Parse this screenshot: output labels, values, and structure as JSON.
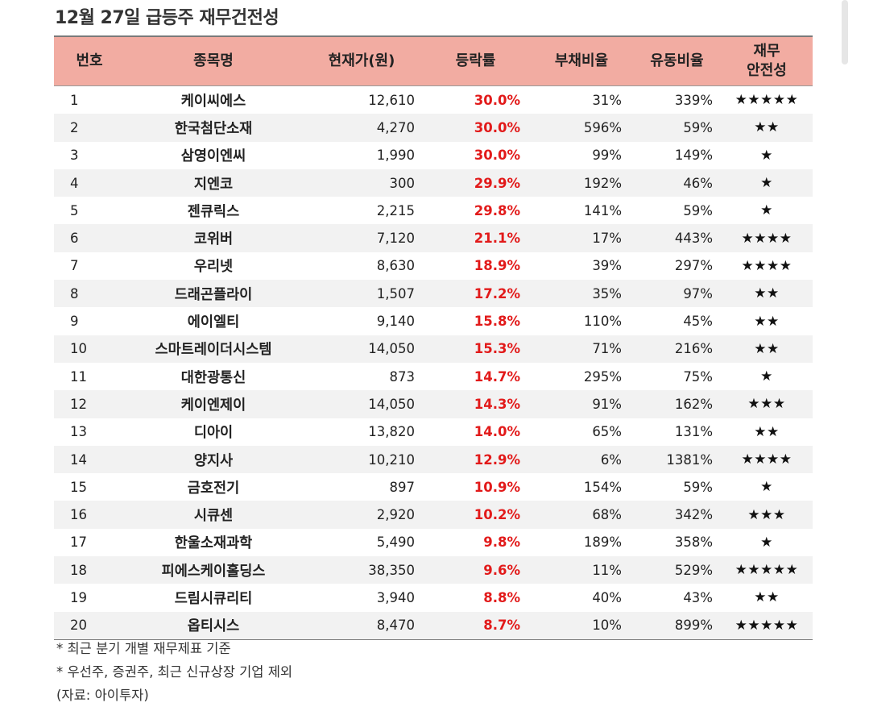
{
  "title": "12월 27일 급등주 재무건전성",
  "headers": {
    "no": "번호",
    "name": "종목명",
    "price": "현재가(원)",
    "change": "등락률",
    "debt": "부채비율",
    "liquidity": "유동비율",
    "safety_line1": "재무",
    "safety_line2": "안전성"
  },
  "rows": [
    {
      "no": "1",
      "name": "케이씨에스",
      "price": "12,610",
      "change": "30.0%",
      "debt": "31%",
      "liquidity": "339%",
      "stars": "★★★★★"
    },
    {
      "no": "2",
      "name": "한국첨단소재",
      "price": "4,270",
      "change": "30.0%",
      "debt": "596%",
      "liquidity": "59%",
      "stars": "★★"
    },
    {
      "no": "3",
      "name": "삼영이엔씨",
      "price": "1,990",
      "change": "30.0%",
      "debt": "99%",
      "liquidity": "149%",
      "stars": "★"
    },
    {
      "no": "4",
      "name": "지엔코",
      "price": "300",
      "change": "29.9%",
      "debt": "192%",
      "liquidity": "46%",
      "stars": "★"
    },
    {
      "no": "5",
      "name": "젠큐릭스",
      "price": "2,215",
      "change": "29.8%",
      "debt": "141%",
      "liquidity": "59%",
      "stars": "★"
    },
    {
      "no": "6",
      "name": "코위버",
      "price": "7,120",
      "change": "21.1%",
      "debt": "17%",
      "liquidity": "443%",
      "stars": "★★★★"
    },
    {
      "no": "7",
      "name": "우리넷",
      "price": "8,630",
      "change": "18.9%",
      "debt": "39%",
      "liquidity": "297%",
      "stars": "★★★★"
    },
    {
      "no": "8",
      "name": "드래곤플라이",
      "price": "1,507",
      "change": "17.2%",
      "debt": "35%",
      "liquidity": "97%",
      "stars": "★★"
    },
    {
      "no": "9",
      "name": "에이엘티",
      "price": "9,140",
      "change": "15.8%",
      "debt": "110%",
      "liquidity": "45%",
      "stars": "★★"
    },
    {
      "no": "10",
      "name": "스마트레이더시스템",
      "price": "14,050",
      "change": "15.3%",
      "debt": "71%",
      "liquidity": "216%",
      "stars": "★★"
    },
    {
      "no": "11",
      "name": "대한광통신",
      "price": "873",
      "change": "14.7%",
      "debt": "295%",
      "liquidity": "75%",
      "stars": "★"
    },
    {
      "no": "12",
      "name": "케이엔제이",
      "price": "14,050",
      "change": "14.3%",
      "debt": "91%",
      "liquidity": "162%",
      "stars": "★★★"
    },
    {
      "no": "13",
      "name": "디아이",
      "price": "13,820",
      "change": "14.0%",
      "debt": "65%",
      "liquidity": "131%",
      "stars": "★★"
    },
    {
      "no": "14",
      "name": "양지사",
      "price": "10,210",
      "change": "12.9%",
      "debt": "6%",
      "liquidity": "1381%",
      "stars": "★★★★"
    },
    {
      "no": "15",
      "name": "금호전기",
      "price": "897",
      "change": "10.9%",
      "debt": "154%",
      "liquidity": "59%",
      "stars": "★"
    },
    {
      "no": "16",
      "name": "시큐센",
      "price": "2,920",
      "change": "10.2%",
      "debt": "68%",
      "liquidity": "342%",
      "stars": "★★★"
    },
    {
      "no": "17",
      "name": "한울소재과학",
      "price": "5,490",
      "change": "9.8%",
      "debt": "189%",
      "liquidity": "358%",
      "stars": "★"
    },
    {
      "no": "18",
      "name": "피에스케이홀딩스",
      "price": "38,350",
      "change": "9.6%",
      "debt": "11%",
      "liquidity": "529%",
      "stars": "★★★★★"
    },
    {
      "no": "19",
      "name": "드림시큐리티",
      "price": "3,940",
      "change": "8.8%",
      "debt": "40%",
      "liquidity": "43%",
      "stars": "★★"
    },
    {
      "no": "20",
      "name": "옵티시스",
      "price": "8,470",
      "change": "8.7%",
      "debt": "10%",
      "liquidity": "899%",
      "stars": "★★★★★"
    }
  ],
  "notes": [
    "* 최근 분기 개별 재무제표 기준",
    "* 우선주, 증권주, 최근 신규상장 기업 제외",
    "(자료: 아이투자)"
  ],
  "colors": {
    "header_bg": "#f2aca2",
    "change_red": "#e21a1a",
    "stripe": "#f2f2f2"
  }
}
